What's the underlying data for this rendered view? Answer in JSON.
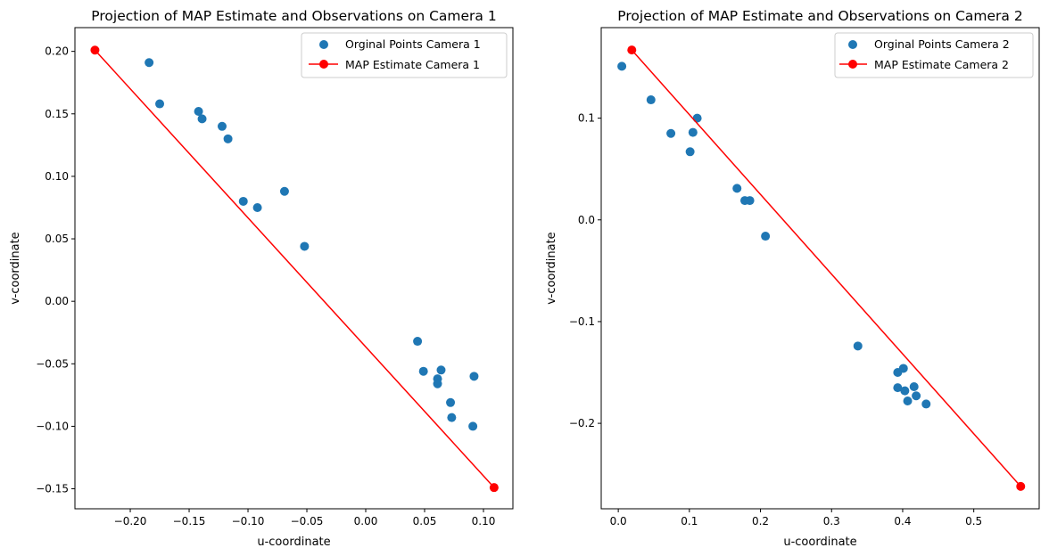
{
  "chart_data": [
    {
      "type": "scatter",
      "title": "Projection of MAP Estimate and Observations on Camera 1",
      "xlabel": "u-coordinate",
      "ylabel": "v-coordinate",
      "xlim": [
        -0.247,
        0.125
      ],
      "ylim": [
        -0.166,
        0.219
      ],
      "xticks": [
        -0.2,
        -0.15,
        -0.1,
        -0.05,
        0.0,
        0.05,
        0.1
      ],
      "xtick_labels": [
        "−0.20",
        "−0.15",
        "−0.10",
        "−0.05",
        "0.00",
        "0.05",
        "0.10"
      ],
      "yticks": [
        -0.15,
        -0.1,
        -0.05,
        0.0,
        0.05,
        0.1,
        0.15,
        0.2
      ],
      "ytick_labels": [
        "−0.15",
        "−0.10",
        "−0.05",
        "0.00",
        "0.05",
        "0.10",
        "0.15",
        "0.20"
      ],
      "grid": false,
      "legend_position": "top-right",
      "series": [
        {
          "name": "Orginal Points Camera 1",
          "kind": "scatter",
          "color": "#1f77b4",
          "x": [
            -0.184,
            -0.175,
            -0.142,
            -0.139,
            -0.122,
            -0.117,
            -0.104,
            -0.092,
            -0.069,
            -0.052,
            0.044,
            0.049,
            0.064,
            0.061,
            0.061,
            0.072,
            0.073,
            0.092,
            0.091
          ],
          "y": [
            0.191,
            0.158,
            0.152,
            0.146,
            0.14,
            0.13,
            0.08,
            0.075,
            0.088,
            0.044,
            -0.032,
            -0.056,
            -0.055,
            -0.062,
            -0.066,
            -0.081,
            -0.093,
            -0.06,
            -0.1
          ]
        },
        {
          "name": "MAP Estimate Camera 1",
          "kind": "line-marker",
          "color": "#ff0000",
          "x": [
            -0.23,
            0.109
          ],
          "y": [
            0.201,
            -0.149
          ]
        }
      ]
    },
    {
      "type": "scatter",
      "title": "Projection of MAP Estimate and Observations on Camera 2",
      "xlabel": "u-coordinate",
      "ylabel": "v-coordinate",
      "xlim": [
        -0.024,
        0.592
      ],
      "ylim": [
        -0.284,
        0.189
      ],
      "xticks": [
        0.0,
        0.1,
        0.2,
        0.3,
        0.4,
        0.5
      ],
      "xtick_labels": [
        "0.0",
        "0.1",
        "0.2",
        "0.3",
        "0.4",
        "0.5"
      ],
      "yticks": [
        -0.2,
        -0.1,
        0.0,
        0.1
      ],
      "ytick_labels": [
        "−0.2",
        "−0.1",
        "0.0",
        "0.1"
      ],
      "grid": false,
      "legend_position": "top-right",
      "series": [
        {
          "name": "Orginal Points Camera 2",
          "kind": "scatter",
          "color": "#1f77b4",
          "x": [
            0.005,
            0.046,
            0.111,
            0.074,
            0.105,
            0.101,
            0.167,
            0.178,
            0.185,
            0.207,
            0.337,
            0.393,
            0.401,
            0.393,
            0.403,
            0.407,
            0.416,
            0.419,
            0.433
          ],
          "y": [
            0.151,
            0.118,
            0.1,
            0.085,
            0.086,
            0.067,
            0.031,
            0.019,
            0.019,
            -0.016,
            -0.124,
            -0.15,
            -0.146,
            -0.165,
            -0.168,
            -0.178,
            -0.164,
            -0.173,
            -0.181
          ]
        },
        {
          "name": "MAP Estimate Camera 2",
          "kind": "line-marker",
          "color": "#ff0000",
          "x": [
            0.019,
            0.566
          ],
          "y": [
            0.167,
            -0.262
          ]
        }
      ]
    }
  ]
}
